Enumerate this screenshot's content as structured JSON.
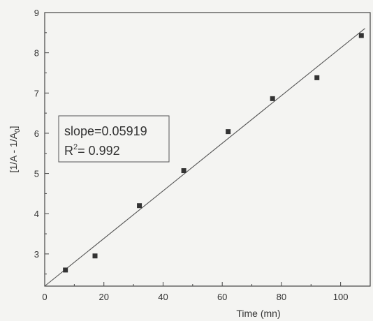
{
  "chart_data": {
    "type": "scatter",
    "xlabel": "Time (mn)",
    "ylabel_main": "[1/A - 1/A",
    "ylabel_sub": "0",
    "ylabel_end": "]",
    "xlim": [
      0,
      110
    ],
    "ylim": [
      2.2,
      9
    ],
    "x_ticks": [
      0,
      20,
      40,
      60,
      80,
      100
    ],
    "y_ticks": [
      3,
      4,
      5,
      6,
      7,
      8,
      9
    ],
    "grid": false,
    "points": [
      {
        "x": 7,
        "y": 2.6
      },
      {
        "x": 17,
        "y": 2.95
      },
      {
        "x": 32,
        "y": 4.2
      },
      {
        "x": 47,
        "y": 5.07
      },
      {
        "x": 62,
        "y": 6.04
      },
      {
        "x": 77,
        "y": 6.86
      },
      {
        "x": 92,
        "y": 7.38
      },
      {
        "x": 107,
        "y": 8.43
      }
    ],
    "fit_line": {
      "intercept": 2.2,
      "slope": 0.05919
    },
    "annotation": {
      "slope_text": "slope=0.05919",
      "r2_prefix": "R",
      "r2_sup": "2",
      "r2_value": "= 0.992"
    },
    "colors": {
      "line": "#555555",
      "marker": "#333333",
      "axis": "#444444"
    }
  }
}
